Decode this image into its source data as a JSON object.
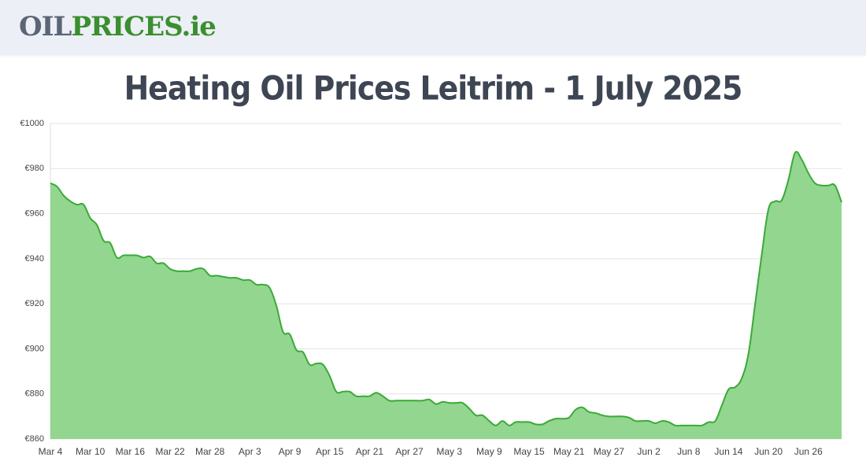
{
  "header": {
    "logo_left": "OIL",
    "logo_right": "PRICES.ie"
  },
  "chart_data": {
    "type": "area",
    "title": "Heating Oil Prices Leitrim - 1 July 2025",
    "color": "#3aaa35",
    "fill": "#92d690",
    "grid": true,
    "ylim": [
      860,
      1000
    ],
    "yticks": [
      {
        "value": 860,
        "label": "€860"
      },
      {
        "value": 880,
        "label": "€880"
      },
      {
        "value": 900,
        "label": "€900"
      },
      {
        "value": 920,
        "label": "€920"
      },
      {
        "value": 940,
        "label": "€940"
      },
      {
        "value": 960,
        "label": "€960"
      },
      {
        "value": 980,
        "label": "€980"
      },
      {
        "value": 1000,
        "label": "€1000"
      }
    ],
    "categories": [
      "Mar 4",
      null,
      null,
      null,
      null,
      null,
      "Mar 10",
      null,
      null,
      null,
      null,
      null,
      "Mar 16",
      null,
      null,
      null,
      null,
      null,
      "Mar 22",
      null,
      null,
      null,
      null,
      null,
      "Mar 28",
      null,
      null,
      null,
      null,
      null,
      "Apr 3",
      null,
      null,
      null,
      null,
      null,
      "Apr 9",
      null,
      null,
      null,
      null,
      null,
      "Apr 15",
      null,
      null,
      null,
      null,
      null,
      "Apr 21",
      null,
      null,
      null,
      null,
      null,
      "Apr 27",
      null,
      null,
      null,
      null,
      null,
      "May 3",
      null,
      null,
      null,
      null,
      null,
      "May 9",
      null,
      null,
      null,
      null,
      null,
      "May 15",
      null,
      null,
      null,
      null,
      null,
      "May 21",
      null,
      null,
      null,
      null,
      null,
      "May 27",
      null,
      null,
      null,
      null,
      null,
      "Jun 2",
      null,
      null,
      null,
      null,
      null,
      "Jun 8",
      null,
      null,
      null,
      null,
      null,
      "Jun 14",
      null,
      null,
      null,
      null,
      null,
      "Jun 20",
      null,
      null,
      null,
      null,
      null,
      "Jun 26",
      null,
      null,
      null,
      null,
      null
    ],
    "values": [
      973.5,
      972,
      968,
      965.5,
      964,
      964,
      958,
      955,
      948,
      947,
      940.5,
      941.5,
      941.5,
      941.5,
      940.5,
      941,
      938,
      938,
      935.5,
      934.5,
      934.5,
      934.5,
      935.5,
      935.5,
      932.5,
      932.5,
      932,
      931.5,
      931.5,
      930.5,
      930.5,
      928.5,
      928.5,
      927,
      919,
      907.5,
      906.5,
      899.5,
      898.5,
      893,
      893.5,
      893,
      888,
      881,
      881,
      881,
      879,
      879,
      879,
      880.5,
      879,
      877,
      877,
      877,
      877,
      877,
      877,
      877.5,
      875.5,
      876.5,
      876,
      876,
      876,
      873.5,
      870.5,
      870.5,
      868,
      866,
      868,
      866,
      867.5,
      867.5,
      867.5,
      866.5,
      866.5,
      868,
      869,
      869,
      869.5,
      873,
      874,
      872,
      871.5,
      870.5,
      870,
      870,
      870,
      869.5,
      868,
      868,
      868,
      867,
      868,
      867.5,
      866,
      866,
      866,
      866,
      866,
      867.5,
      868,
      875,
      882,
      883,
      887,
      898,
      920,
      942,
      962,
      965.5,
      966,
      975,
      987,
      984,
      978,
      973.5,
      972.5,
      972.5,
      972.5,
      965
    ]
  }
}
